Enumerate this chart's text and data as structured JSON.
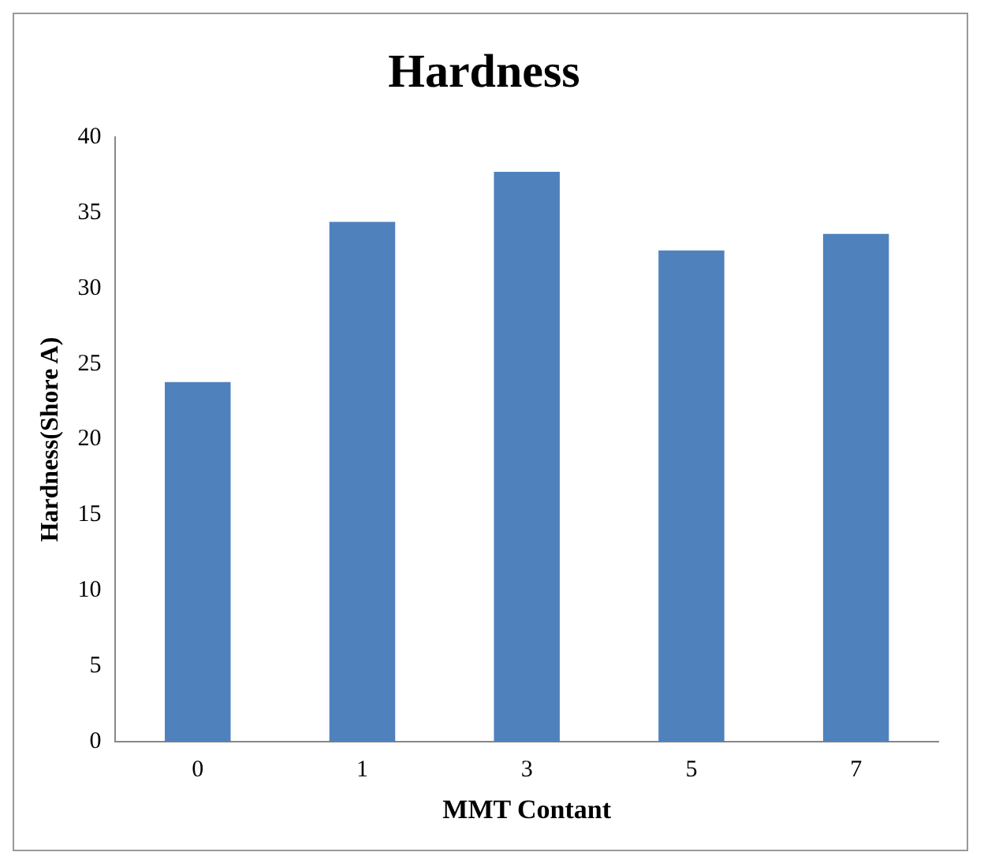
{
  "chart_data": {
    "type": "bar",
    "title": "Hardness",
    "xlabel": "MMT Contant",
    "ylabel": "Hardness(Shore A)",
    "categories": [
      "0",
      "1",
      "3",
      "5",
      "7"
    ],
    "values": [
      23.8,
      34.4,
      37.7,
      32.5,
      33.6
    ],
    "color": "#4f81bd",
    "ylim": [
      0,
      40
    ],
    "yticks": [
      0,
      5,
      10,
      15,
      20,
      25,
      30,
      35,
      40
    ],
    "grid": false,
    "legend": false
  }
}
